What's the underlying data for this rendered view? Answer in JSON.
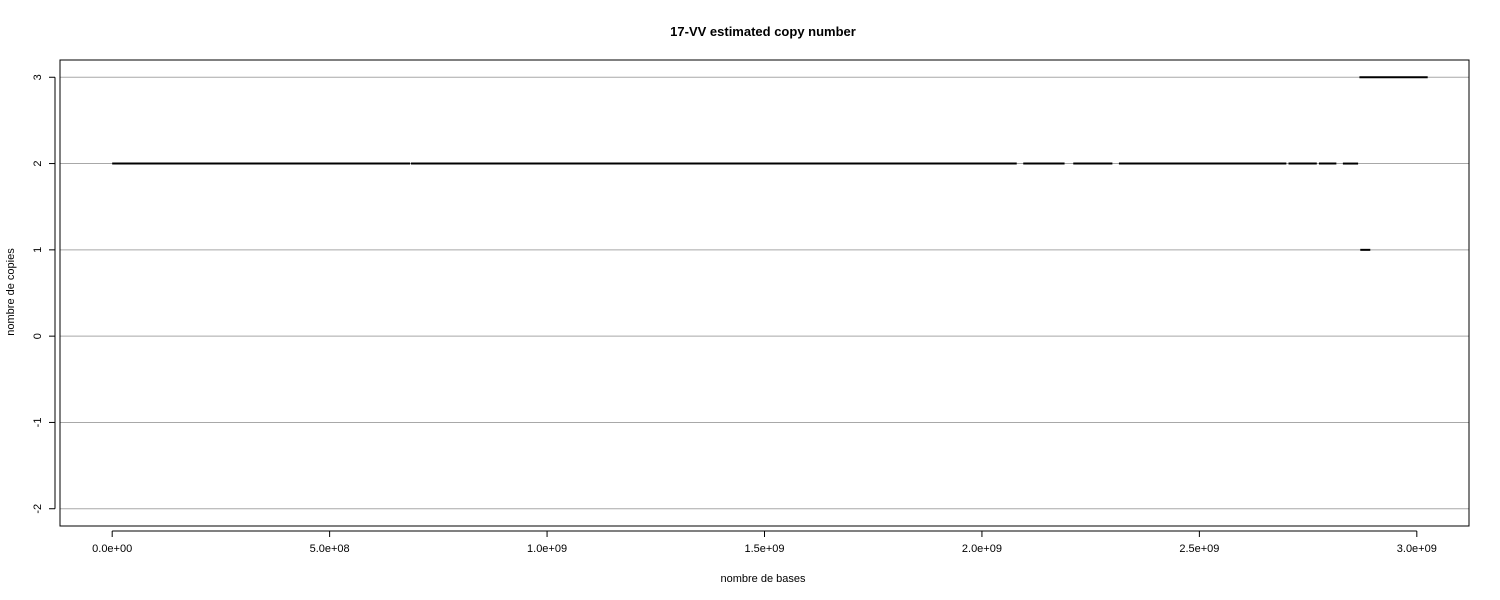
{
  "chart_data": {
    "type": "line",
    "title": "17-VV estimated copy number",
    "xlabel": "nombre de bases",
    "ylabel": "nombre de copies",
    "xlim": [
      -120000000,
      3120000000
    ],
    "ylim": [
      -2.2,
      3.2
    ],
    "grid": "horizontal",
    "colors": {
      "line": "#000000",
      "grid": "#a8a8a8",
      "frame": "#000000"
    },
    "x_ticks": [
      {
        "value": 0,
        "label": "0.0e+00"
      },
      {
        "value": 500000000,
        "label": "5.0e+08"
      },
      {
        "value": 1000000000,
        "label": "1.0e+09"
      },
      {
        "value": 1500000000,
        "label": "1.5e+09"
      },
      {
        "value": 2000000000,
        "label": "2.0e+09"
      },
      {
        "value": 2500000000,
        "label": "2.5e+09"
      },
      {
        "value": 3000000000,
        "label": "3.0e+09"
      }
    ],
    "y_ticks": [
      {
        "value": 3,
        "label": "3"
      },
      {
        "value": 2,
        "label": "2"
      },
      {
        "value": 1,
        "label": "1"
      },
      {
        "value": 0,
        "label": "0"
      },
      {
        "value": -1,
        "label": "-1"
      },
      {
        "value": -2,
        "label": "-2"
      }
    ],
    "segments": [
      {
        "x0": 0,
        "x1": 685000000,
        "y": 2
      },
      {
        "x0": 687000000,
        "x1": 2080000000,
        "y": 2
      },
      {
        "x0": 2095000000,
        "x1": 2190000000,
        "y": 2
      },
      {
        "x0": 2210000000,
        "x1": 2300000000,
        "y": 2
      },
      {
        "x0": 2315000000,
        "x1": 2700000000,
        "y": 2
      },
      {
        "x0": 2705000000,
        "x1": 2770000000,
        "y": 2
      },
      {
        "x0": 2775000000,
        "x1": 2815000000,
        "y": 2
      },
      {
        "x0": 2830000000,
        "x1": 2865000000,
        "y": 2
      },
      {
        "x0": 2870000000,
        "x1": 2893000000,
        "y": 1
      },
      {
        "x0": 2868000000,
        "x1": 3025000000,
        "y": 3
      }
    ]
  }
}
